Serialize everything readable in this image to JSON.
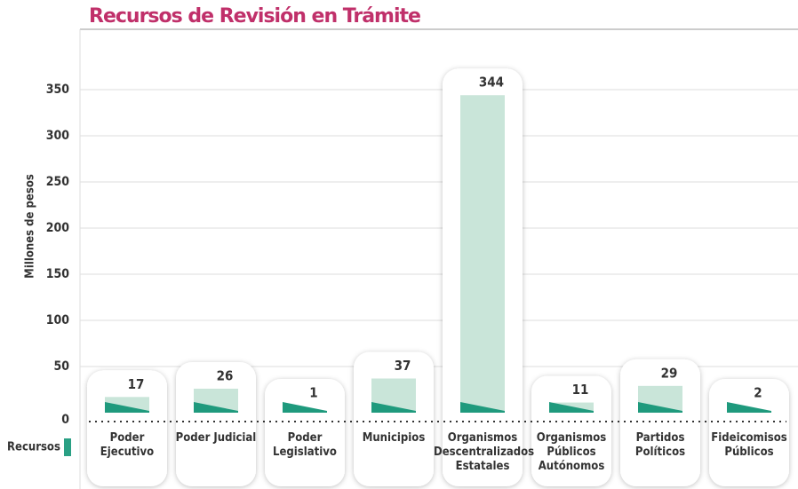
{
  "chart_data": {
    "type": "bar",
    "title": "Recursos de Revisión en Trámite",
    "y_label": "Millones de pesos",
    "categories": [
      "Poder Ejecutivo",
      "Poder Judicial",
      "Poder Legislativo",
      "Municipios",
      "Organismos Descentralizados Estatales",
      "Organismos Públicos Autónomos",
      "Partidos Políticos",
      "Fideicomisos Públicos"
    ],
    "series": [
      {
        "name": "Recursos",
        "color": "#c9e5d9",
        "values": [
          17,
          26,
          1,
          37,
          344,
          11,
          29,
          2
        ]
      }
    ],
    "ylim": [
      0,
      400
    ],
    "yticks": [
      0,
      50,
      100,
      150,
      200,
      250,
      300,
      350
    ],
    "grid": true
  }
}
